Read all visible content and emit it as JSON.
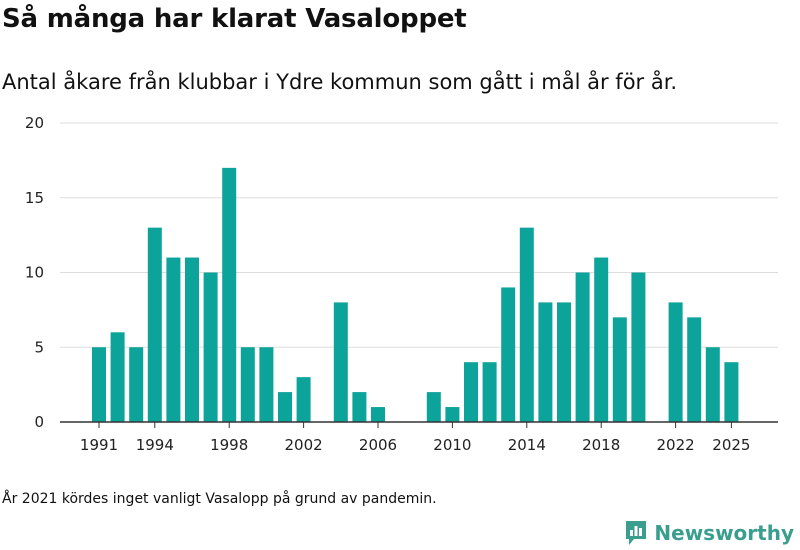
{
  "header": {
    "title": "Så många har klarat Vasaloppet",
    "subtitle": "Antal åkare från klubbar i Ydre kommun som gått i mål år för år."
  },
  "footer": {
    "note": "År 2021 kördes inget vanligt Vasalopp på grund av pandemin.",
    "brand": "Newsworthy",
    "brand_icon": "bar-chart-logo-icon"
  },
  "colors": {
    "bar": "#0ca39a",
    "grid": "#dddddd",
    "axis": "#333333",
    "brand": "#3a9e8f"
  },
  "chart_data": {
    "type": "bar",
    "title": "Så många har klarat Vasaloppet",
    "subtitle": "Antal åkare från klubbar i Ydre kommun som gått i mål år för år.",
    "xlabel": "",
    "ylabel": "",
    "ylim": [
      0,
      20
    ],
    "yticks": [
      0,
      5,
      10,
      15,
      20
    ],
    "xticks": [
      1991,
      1994,
      1998,
      2002,
      2006,
      2010,
      2014,
      2018,
      2022,
      2025
    ],
    "grid": true,
    "legend": "none",
    "categories": [
      1991,
      1992,
      1993,
      1994,
      1995,
      1996,
      1997,
      1998,
      1999,
      2000,
      2001,
      2002,
      2003,
      2004,
      2005,
      2006,
      2007,
      2008,
      2009,
      2010,
      2011,
      2012,
      2013,
      2014,
      2015,
      2016,
      2017,
      2018,
      2019,
      2020,
      2021,
      2022,
      2023,
      2024,
      2025
    ],
    "values": [
      5,
      6,
      5,
      13,
      11,
      11,
      10,
      17,
      5,
      5,
      2,
      3,
      0,
      8,
      2,
      1,
      0,
      0,
      2,
      1,
      4,
      4,
      9,
      13,
      8,
      8,
      10,
      11,
      7,
      10,
      null,
      8,
      7,
      5,
      4
    ]
  }
}
